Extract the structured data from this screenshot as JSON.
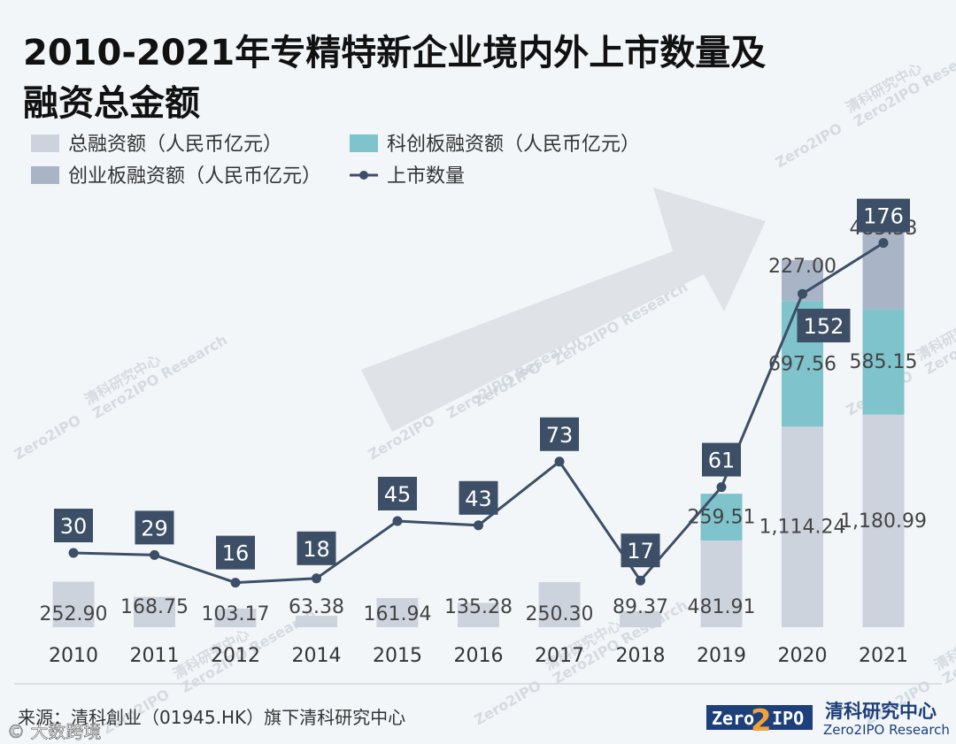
{
  "title_line1": "2010-2021年专精特新企业境内外上市数量及",
  "title_line2": "融资总金额",
  "colors": {
    "total": "#cdd3dd",
    "star": "#7fc3cc",
    "gem": "#a9b5c6",
    "line": "#3d4f66",
    "badge": "#3d4f66",
    "arrow": "#dfe3e7"
  },
  "legend": [
    {
      "key": "total",
      "label": "总融资额（人民币亿元）",
      "kind": "rect"
    },
    {
      "key": "star",
      "label": "科创板融资额（人民币亿元）",
      "kind": "rect"
    },
    {
      "key": "gem",
      "label": "创业板融资额（人民币亿元）",
      "kind": "rect"
    },
    {
      "key": "line",
      "label": "上市数量",
      "kind": "line"
    }
  ],
  "chart_data": {
    "type": "bar",
    "title": "2010-2021年专精特新企业境内外上市数量及融资总金额",
    "categories": [
      "2010",
      "2011",
      "2012",
      "2014",
      "2015",
      "2016",
      "2017",
      "2018",
      "2019",
      "2020",
      "2021"
    ],
    "series": [
      {
        "name": "总融资额（人民币亿元）",
        "key": "total",
        "values": [
          252.9,
          168.75,
          103.17,
          63.38,
          161.94,
          135.28,
          250.3,
          89.37,
          481.91,
          1114.24,
          1180.99
        ],
        "labels": [
          "252.90",
          "168.75",
          "103.17",
          "63.38",
          "161.94",
          "135.28",
          "250.30",
          "89.37",
          "481.91",
          "1,114.24",
          "1,180.99"
        ]
      },
      {
        "name": "科创板融资额（人民币亿元）",
        "key": "star",
        "values": [
          null,
          null,
          null,
          null,
          null,
          null,
          null,
          null,
          259.51,
          697.56,
          585.15
        ],
        "labels": [
          "",
          "",
          "",
          "",
          "",
          "",
          "",
          "",
          "259.51",
          "697.56",
          "585.15"
        ]
      },
      {
        "name": "创业板融资额（人民币亿元）",
        "key": "gem",
        "values": [
          null,
          null,
          null,
          null,
          null,
          null,
          null,
          null,
          null,
          227.0,
          485.33
        ],
        "labels": [
          "",
          "",
          "",
          "",
          "",
          "",
          "",
          "",
          "",
          "227.00",
          "485.33"
        ]
      },
      {
        "name": "上市数量",
        "key": "line",
        "values": [
          30,
          29,
          16,
          18,
          45,
          43,
          73,
          17,
          61,
          152,
          176
        ],
        "labels": [
          "30",
          "29",
          "16",
          "18",
          "45",
          "43",
          "73",
          "17",
          "61",
          "152",
          "176"
        ]
      }
    ],
    "stacked": true,
    "legend_position": "top-left",
    "grid": false
  },
  "footer": {
    "source": "来源：清科創业（01945.HK）旗下清科研究中心",
    "logo_box_left": "Zero",
    "logo_box_num": "2",
    "logo_box_right": "IPO",
    "logo_title": "清科研究中心",
    "logo_sub": "Zero2IPO Research",
    "overlay": "© 大数跨境"
  },
  "watermark": {
    "cn": "清科研究中心",
    "en": "Zero2IPO Research",
    "logo": "Zero2IPO"
  }
}
